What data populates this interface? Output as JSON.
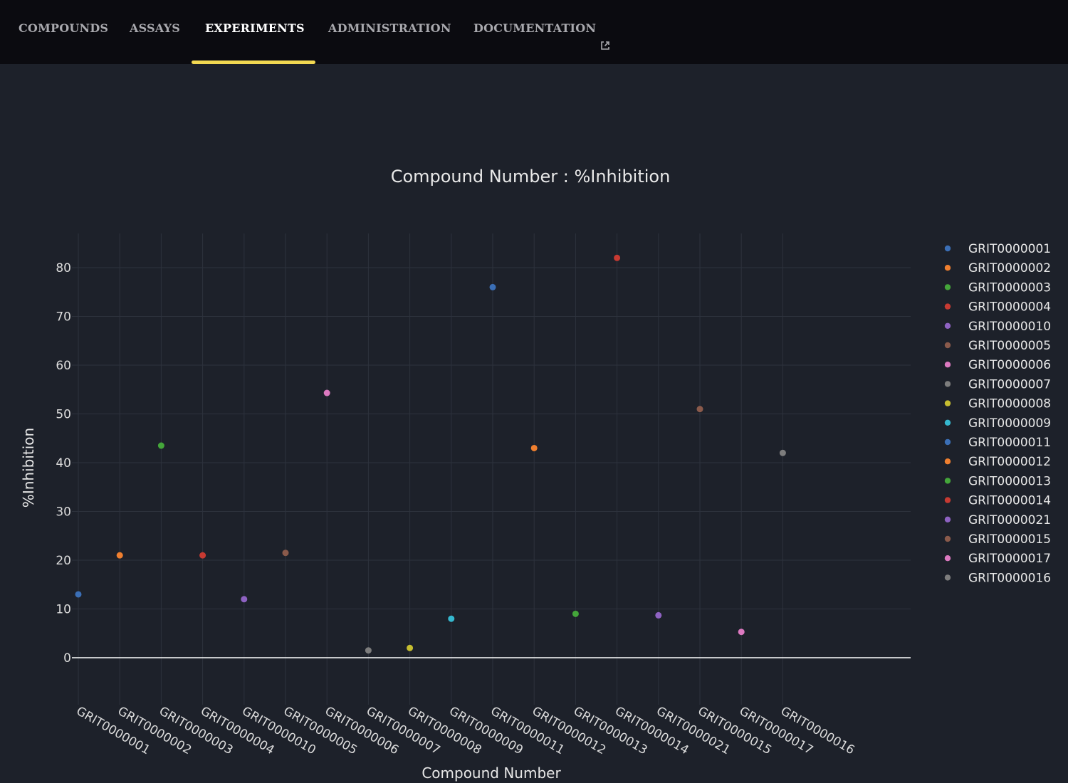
{
  "nav": {
    "tabs": [
      {
        "label": "COMPOUNDS",
        "active": false
      },
      {
        "label": "ASSAYS",
        "active": false
      },
      {
        "label": "EXPERIMENTS",
        "active": true
      },
      {
        "label": "ADMINISTRATION",
        "active": false
      },
      {
        "label": "DOCUMENTATION",
        "active": false,
        "icon": "external-link-icon"
      }
    ],
    "accent": "#f2d852"
  },
  "chart_data": {
    "type": "scatter",
    "title": "Compound Number : %Inhibition",
    "xlabel": "Compound Number",
    "ylabel": "%Inhibition",
    "ylim": [
      -10,
      87
    ],
    "yticks": [
      0,
      10,
      20,
      30,
      40,
      50,
      60,
      70,
      80
    ],
    "grid": true,
    "legend_position": "right",
    "categories": [
      "GRIT0000001",
      "GRIT0000002",
      "GRIT0000003",
      "GRIT0000004",
      "GRIT0000010",
      "GRIT0000005",
      "GRIT0000006",
      "GRIT0000007",
      "GRIT0000008",
      "GRIT0000009",
      "GRIT0000011",
      "GRIT0000012",
      "GRIT0000013",
      "GRIT0000014",
      "GRIT0000021",
      "GRIT0000015",
      "GRIT0000017",
      "GRIT0000016"
    ],
    "series": [
      {
        "name": "GRIT0000001",
        "x": "GRIT0000001",
        "y": 13,
        "color": "#3b6fb6"
      },
      {
        "name": "GRIT0000002",
        "x": "GRIT0000002",
        "y": 21,
        "color": "#ef7f2f"
      },
      {
        "name": "GRIT0000003",
        "x": "GRIT0000003",
        "y": 43.5,
        "color": "#44a63a"
      },
      {
        "name": "GRIT0000004",
        "x": "GRIT0000004",
        "y": 21,
        "color": "#c73a32"
      },
      {
        "name": "GRIT0000010",
        "x": "GRIT0000010",
        "y": 12,
        "color": "#8e62c2"
      },
      {
        "name": "GRIT0000005",
        "x": "GRIT0000005",
        "y": 21.5,
        "color": "#8a5a4b"
      },
      {
        "name": "GRIT0000006",
        "x": "GRIT0000006",
        "y": 54.3,
        "color": "#dc79c0"
      },
      {
        "name": "GRIT0000007",
        "x": "GRIT0000007",
        "y": 1.5,
        "color": "#7d7d7d"
      },
      {
        "name": "GRIT0000008",
        "x": "GRIT0000008",
        "y": 2,
        "color": "#c6be30"
      },
      {
        "name": "GRIT0000009",
        "x": "GRIT0000009",
        "y": 8,
        "color": "#35b8cf"
      },
      {
        "name": "GRIT0000011",
        "x": "GRIT0000011",
        "y": 76,
        "color": "#3b6fb6"
      },
      {
        "name": "GRIT0000012",
        "x": "GRIT0000012",
        "y": 43,
        "color": "#ef7f2f"
      },
      {
        "name": "GRIT0000013",
        "x": "GRIT0000013",
        "y": 9,
        "color": "#44a63a"
      },
      {
        "name": "GRIT0000014",
        "x": "GRIT0000014",
        "y": 82,
        "color": "#c73a32"
      },
      {
        "name": "GRIT0000021",
        "x": "GRIT0000021",
        "y": 8.7,
        "color": "#8e62c2"
      },
      {
        "name": "GRIT0000015",
        "x": "GRIT0000015",
        "y": 51,
        "color": "#8a5a4b"
      },
      {
        "name": "GRIT0000017",
        "x": "GRIT0000017",
        "y": 5.3,
        "color": "#dc79c0"
      },
      {
        "name": "GRIT0000016",
        "x": "GRIT0000016",
        "y": 42,
        "color": "#7d7d7d"
      }
    ]
  }
}
